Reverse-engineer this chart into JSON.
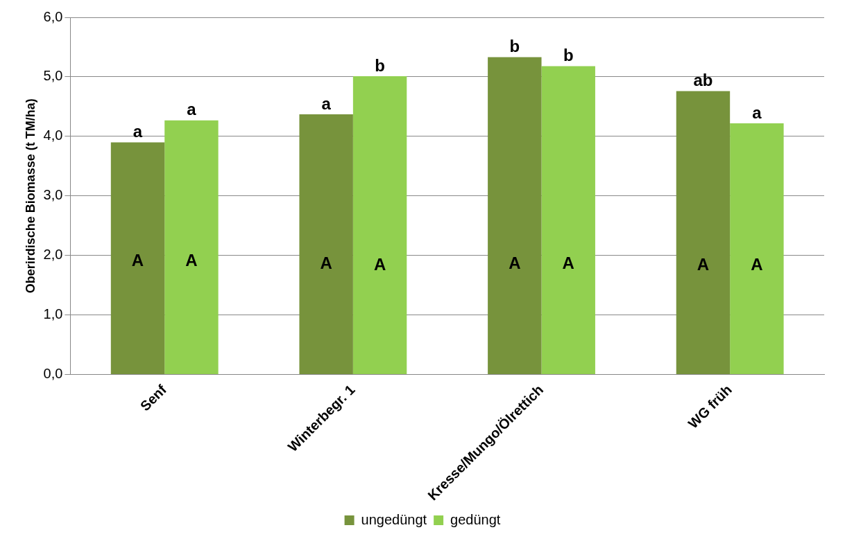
{
  "chart_data": {
    "type": "bar",
    "ylabel": "Oberirdische Biomasse (t TM/ha)",
    "categories": [
      "Senf",
      "Winterbegr. 1",
      "Kresse/Mungo/Ölrettich",
      "WG früh"
    ],
    "series": [
      {
        "name": "ungedüngt",
        "color": "#77933c",
        "values": [
          3.9,
          4.37,
          5.33,
          4.76
        ],
        "value_labels": [
          "a",
          "a",
          "b",
          "ab"
        ]
      },
      {
        "name": "gedüngt",
        "color": "#92d050",
        "values": [
          4.27,
          5.01,
          5.18,
          4.22
        ],
        "value_labels": [
          "a",
          "b",
          "b",
          "a"
        ]
      }
    ],
    "ylim": [
      0,
      6
    ],
    "yticks": [
      {
        "value": 0,
        "label": "0,0"
      },
      {
        "value": 1,
        "label": "1,0"
      },
      {
        "value": 2,
        "label": "2,0"
      },
      {
        "value": 3,
        "label": "3,0"
      },
      {
        "value": 4,
        "label": "4,0"
      },
      {
        "value": 5,
        "label": "5,0"
      },
      {
        "value": 6,
        "label": "6,0"
      }
    ],
    "grid": "y",
    "legend": "bottom",
    "annotations": [
      {
        "text": "A",
        "x": "Senf",
        "y": 1.9
      },
      {
        "text": "A",
        "x": "Senf",
        "y": 1.9
      },
      {
        "text": "A",
        "x": "Winterbegr. 1",
        "y": 1.85
      },
      {
        "text": "A",
        "x": "Winterbegr. 1",
        "y": 1.83
      },
      {
        "text": "A",
        "x": "Kresse/Mungo/Ölrettich",
        "y": 1.85
      },
      {
        "text": "A",
        "x": "Kresse/Mungo/Ölrettich",
        "y": 1.85
      },
      {
        "text": "A",
        "x": "WG früh",
        "y": 1.83
      },
      {
        "text": "A",
        "x": "WG früh",
        "y": 1.83
      }
    ]
  }
}
